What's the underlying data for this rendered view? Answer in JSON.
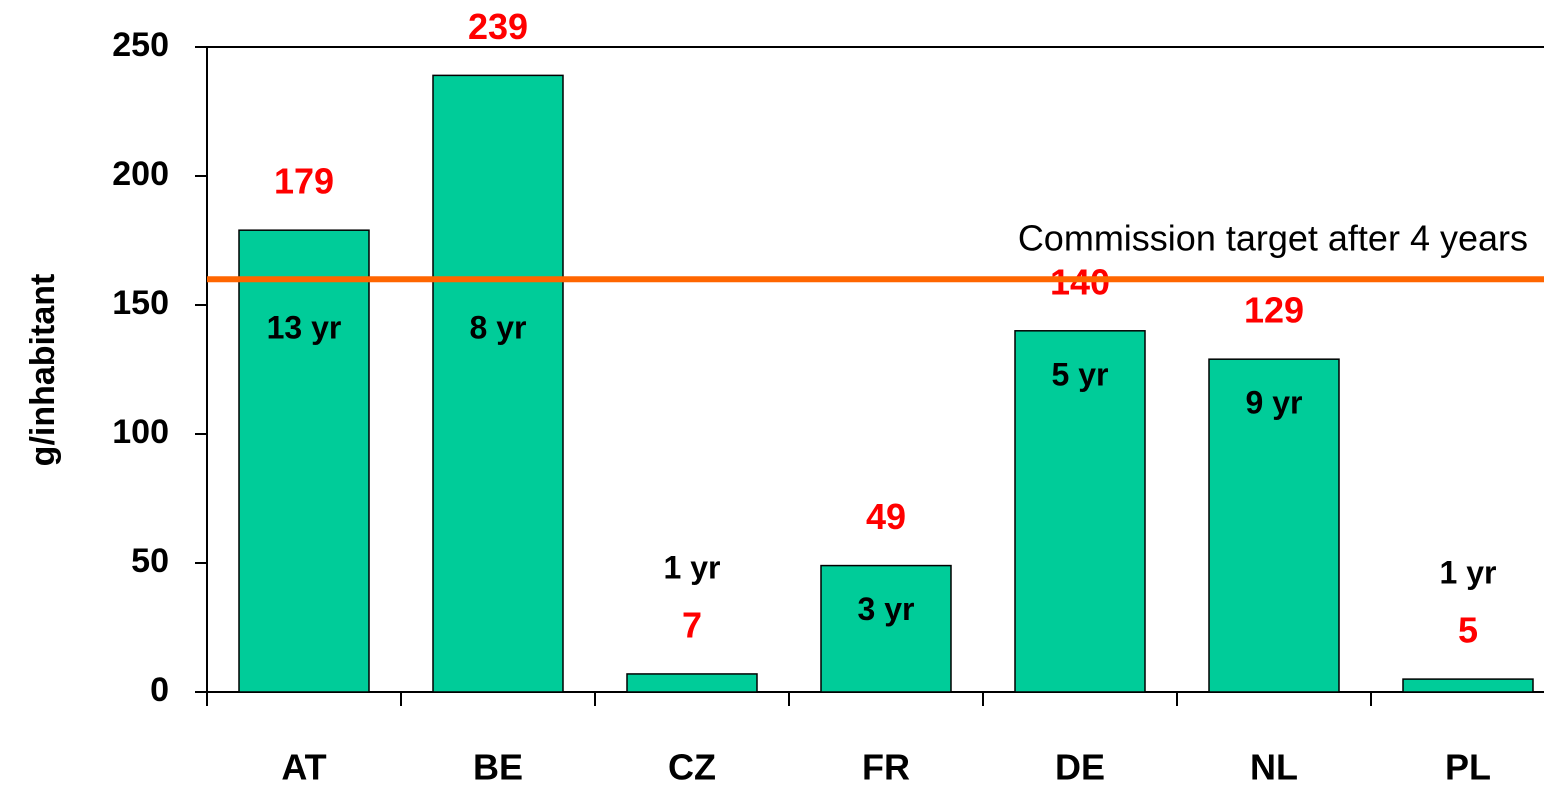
{
  "chart_data": {
    "type": "bar",
    "ylabel": "g/inhabitant",
    "categories": [
      "AT",
      "BE",
      "CZ",
      "FR",
      "DE",
      "NL",
      "PL"
    ],
    "values": [
      179,
      239,
      7,
      49,
      140,
      129,
      5
    ],
    "bar_labels": [
      "13 yr",
      "8 yr",
      "1 yr",
      "3 yr",
      "5 yr",
      "9 yr",
      "1 yr"
    ],
    "color": "#00cc99",
    "value_label_color": "#ff0000",
    "ylim": [
      0,
      250
    ],
    "yticks": [
      0,
      50,
      100,
      150,
      200,
      250
    ],
    "target": {
      "value": 160,
      "label": "Commission target after 4 years",
      "color": "#ff6600"
    }
  }
}
